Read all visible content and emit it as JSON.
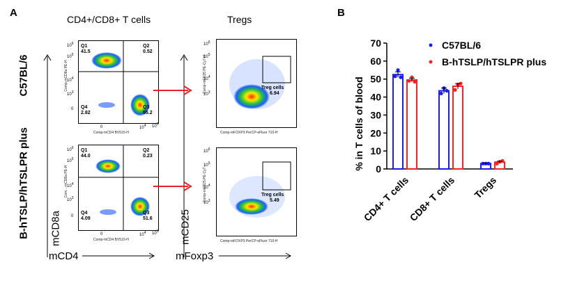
{
  "panel_a": {
    "letter": "A",
    "header_left": "CD4+/CD8+ T cells",
    "header_right": "Tregs",
    "row_label_top": "C57BL/6",
    "row_label_bottom": "B-hTSLP/hTSLPR plus",
    "axis_y_left": "mCD8a",
    "axis_x_left": "mCD4",
    "axis_y_right": "mCD25",
    "axis_x_right": "mFoxp3",
    "dot_plots": [
      {
        "y_title": "Comp-mCD8a PE-H",
        "x_title": "Comp-mCD4 BV510-H",
        "quadrants": {
          "q1": {
            "label": "Q1",
            "value": "41.5"
          },
          "q2": {
            "label": "Q2",
            "value": "0.52"
          },
          "q3": {
            "label": "Q3",
            "value": "55.2"
          },
          "q4": {
            "label": "Q4",
            "value": "2.82"
          }
        }
      },
      {
        "y_title": "Comp-mCD25 PE-Cy7-H",
        "x_title": "Comp-mFOXP3 PerCP-eFluor 710-H",
        "gate": {
          "label": "Treg cells",
          "value": "6.94"
        }
      },
      {
        "y_title": "Com...-mCD8a PE-H",
        "x_title": "Comp-mCD4 BV510-H",
        "quadrants": {
          "q1": {
            "label": "Q1",
            "value": "44.0"
          },
          "q2": {
            "label": "Q2",
            "value": "0.23"
          },
          "q3": {
            "label": "Q3",
            "value": "51.6"
          },
          "q4": {
            "label": "Q4",
            "value": "4.09"
          }
        }
      },
      {
        "y_title": "Comp-mCD25 PE-Cy7-...",
        "x_title": "Comp-mFOXP3 PerCP-eFluor 710-H",
        "gate": {
          "label": "Treg cells",
          "value": "5.49"
        }
      }
    ],
    "tick_labels": {
      "e6": "10",
      "e5": "10",
      "e4": "10",
      "e3": "10",
      "x4": "10",
      "x5": "10",
      "zero": "0",
      "exp6": "6",
      "exp5": "5",
      "exp4": "4",
      "exp3": "3"
    },
    "colors": {
      "arrow": "#e8202a"
    }
  },
  "panel_b": {
    "letter": "B",
    "chart_data": {
      "type": "bar",
      "title": "",
      "xlabel": "",
      "ylabel": "% in T cells of blood",
      "ylim": [
        0,
        70
      ],
      "yticks": [
        "0",
        "10",
        "20",
        "30",
        "40",
        "50",
        "60",
        "70"
      ],
      "categories": [
        "CD4+ T cells",
        "CD8+ T cells",
        "Tregs"
      ],
      "series": [
        {
          "name": "C57BL/6",
          "color": "#1a1aff",
          "values": [
            52.5,
            43.5,
            3.0
          ],
          "error": [
            1.5,
            1.5,
            0.3
          ],
          "points": [
            [
              51.5,
              55.0,
              51.0
            ],
            [
              42.0,
              45.0,
              43.5
            ],
            [
              3.0,
              3.0,
              3.0
            ]
          ]
        },
        {
          "name": "B-hTSLP/hTSLPR plus",
          "color": "#ff2020",
          "values": [
            49.5,
            46.0,
            3.8
          ],
          "error": [
            1.0,
            1.5,
            0.5
          ],
          "points": [
            [
              49.0,
              51.0,
              48.5
            ],
            [
              44.0,
              47.0,
              47.5
            ],
            [
              3.0,
              4.0,
              4.5
            ]
          ]
        }
      ],
      "legend_position": "top-right",
      "grid": false
    }
  }
}
